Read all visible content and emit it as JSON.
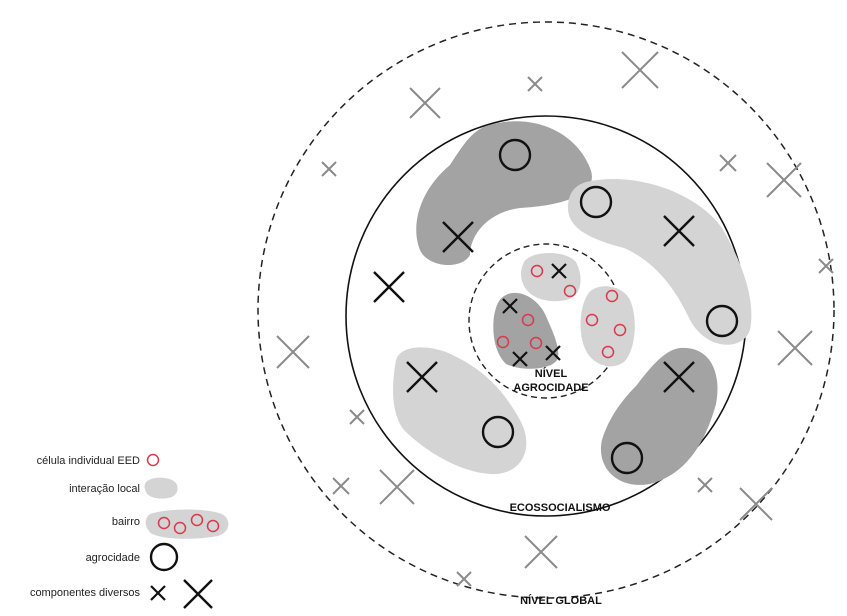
{
  "labels": {
    "inner_line1": "NÍVEL",
    "inner_line2": "AGROCIDADE",
    "middle": "ECOSSOCIALISMO",
    "outer": "NÍVEL GLOBAL"
  },
  "legend": [
    {
      "label": "célula individual EED",
      "icon": "small-red-circle-icon"
    },
    {
      "label": "interação local",
      "icon": "grey-blob-icon"
    },
    {
      "label": "bairro",
      "icon": "neighborhood-blob-icon"
    },
    {
      "label": "agrocidade",
      "icon": "large-black-circle-icon"
    },
    {
      "label": "componentes diversos",
      "icon": "cross-icons"
    }
  ],
  "colors": {
    "dark_grey": "#a3a3a3",
    "light_grey": "#d4d4d4",
    "cell_red": "#d9394a",
    "outer_cross": "#8a8a8a",
    "ink": "#111111"
  }
}
